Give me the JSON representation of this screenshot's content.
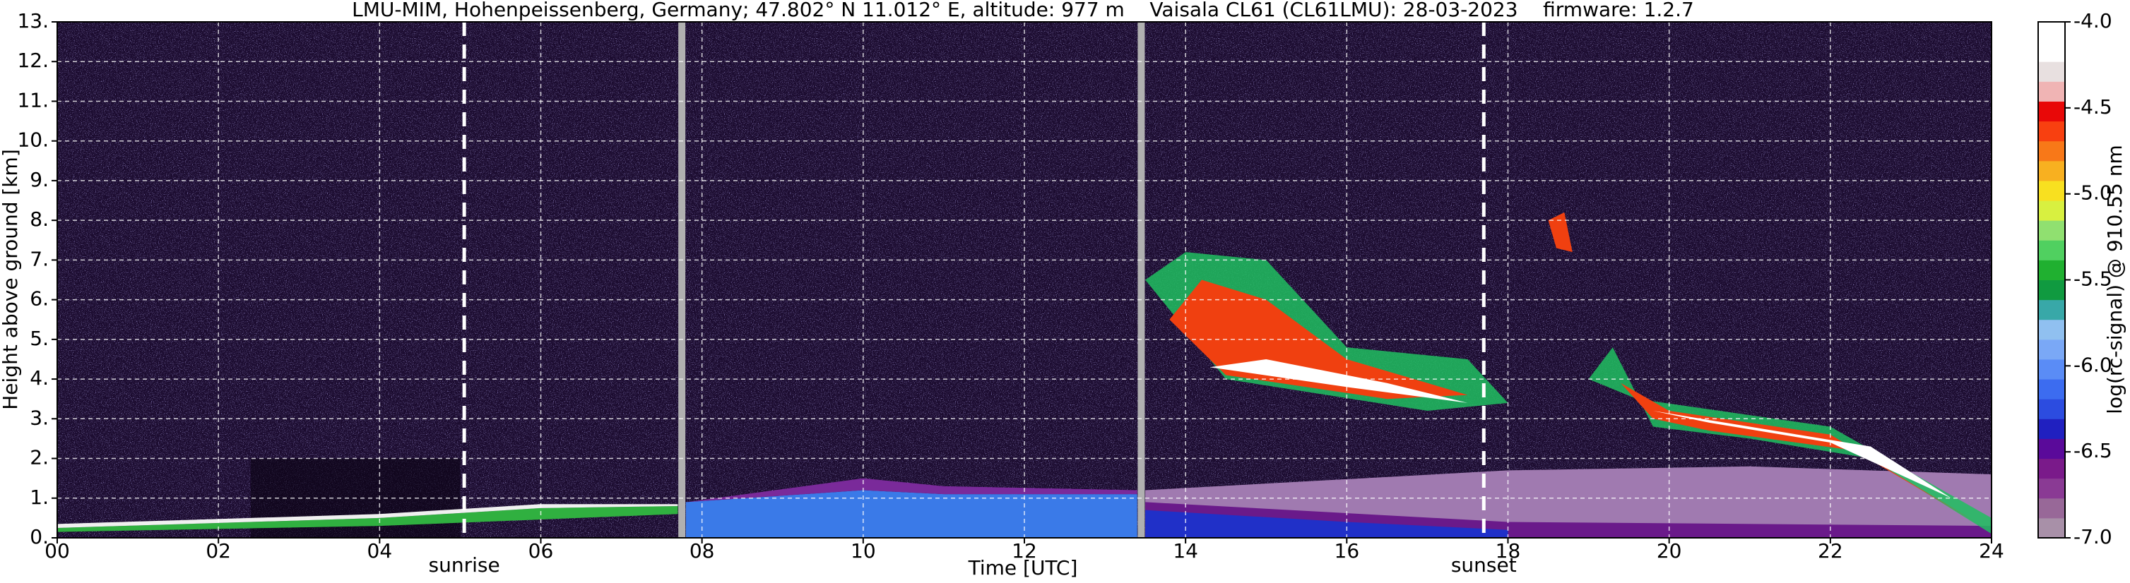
{
  "chart_data": {
    "type": "heatmap",
    "title": "LMU-MIM, Hohenpeissenberg, Germany; 47.802° N 11.012° E, altitude: 977 m    Vaisala CL61 (CL61LMU): 28-03-2023    firmware: 1.2.7",
    "x_label": "Time [UTC]",
    "y_label": "Height above ground [km]",
    "colorbar_label": "log(rc-signal) @ 910.55 nm",
    "xlim": [
      0,
      24
    ],
    "xticks": [
      {
        "value": 0,
        "label": "00"
      },
      {
        "value": 2,
        "label": "02"
      },
      {
        "value": 4,
        "label": "04"
      },
      {
        "value": 6,
        "label": "06"
      },
      {
        "value": 8,
        "label": "08"
      },
      10,
      12,
      14,
      16,
      18,
      20,
      22,
      24
    ],
    "ylim": [
      0,
      13
    ],
    "yticks": [
      {
        "value": 0,
        "label": "0."
      },
      {
        "value": 1,
        "label": "1."
      },
      {
        "value": 2,
        "label": "2."
      },
      {
        "value": 3,
        "label": "3."
      },
      {
        "value": 4,
        "label": "4."
      },
      {
        "value": 5,
        "label": "5."
      },
      {
        "value": 6,
        "label": "6."
      },
      {
        "value": 7,
        "label": "7."
      },
      {
        "value": 8,
        "label": "8."
      },
      {
        "value": 9,
        "label": "9."
      },
      {
        "value": 10,
        "label": "10."
      },
      {
        "value": 11,
        "label": "11."
      },
      {
        "value": 12,
        "label": "12."
      },
      {
        "value": 13,
        "label": "13."
      }
    ],
    "clim": [
      -7,
      -4
    ],
    "cticks": [
      {
        "value": -4,
        "label": "-4.0"
      },
      -4.5,
      {
        "value": -5,
        "label": "-5.0"
      },
      -5.5,
      {
        "value": -6,
        "label": "-6.0"
      },
      -6.5,
      {
        "value": -7,
        "label": "-7.0"
      }
    ],
    "colormap": [
      "#a890a8",
      "#986898",
      "#8a3a94",
      "#7a1a8a",
      "#5a0a9a",
      "#2020c0",
      "#2c4ce0",
      "#3c6cf0",
      "#5a8cf6",
      "#7aa8f6",
      "#90c0f0",
      "#38a8a8",
      "#109a40",
      "#20b030",
      "#50d060",
      "#90e070",
      "#d8f040",
      "#f8e020",
      "#f8b020",
      "#f87818",
      "#f84010",
      "#e80808",
      "#f0b4b4",
      "#e8e0e0",
      "#ffffff",
      "#ffffff"
    ],
    "grid": true,
    "events": [
      {
        "label": "sunrise",
        "x": 5.05
      },
      {
        "label": "sunset",
        "x": 17.7
      }
    ],
    "data_gaps": [
      7.75,
      13.45
    ]
  }
}
